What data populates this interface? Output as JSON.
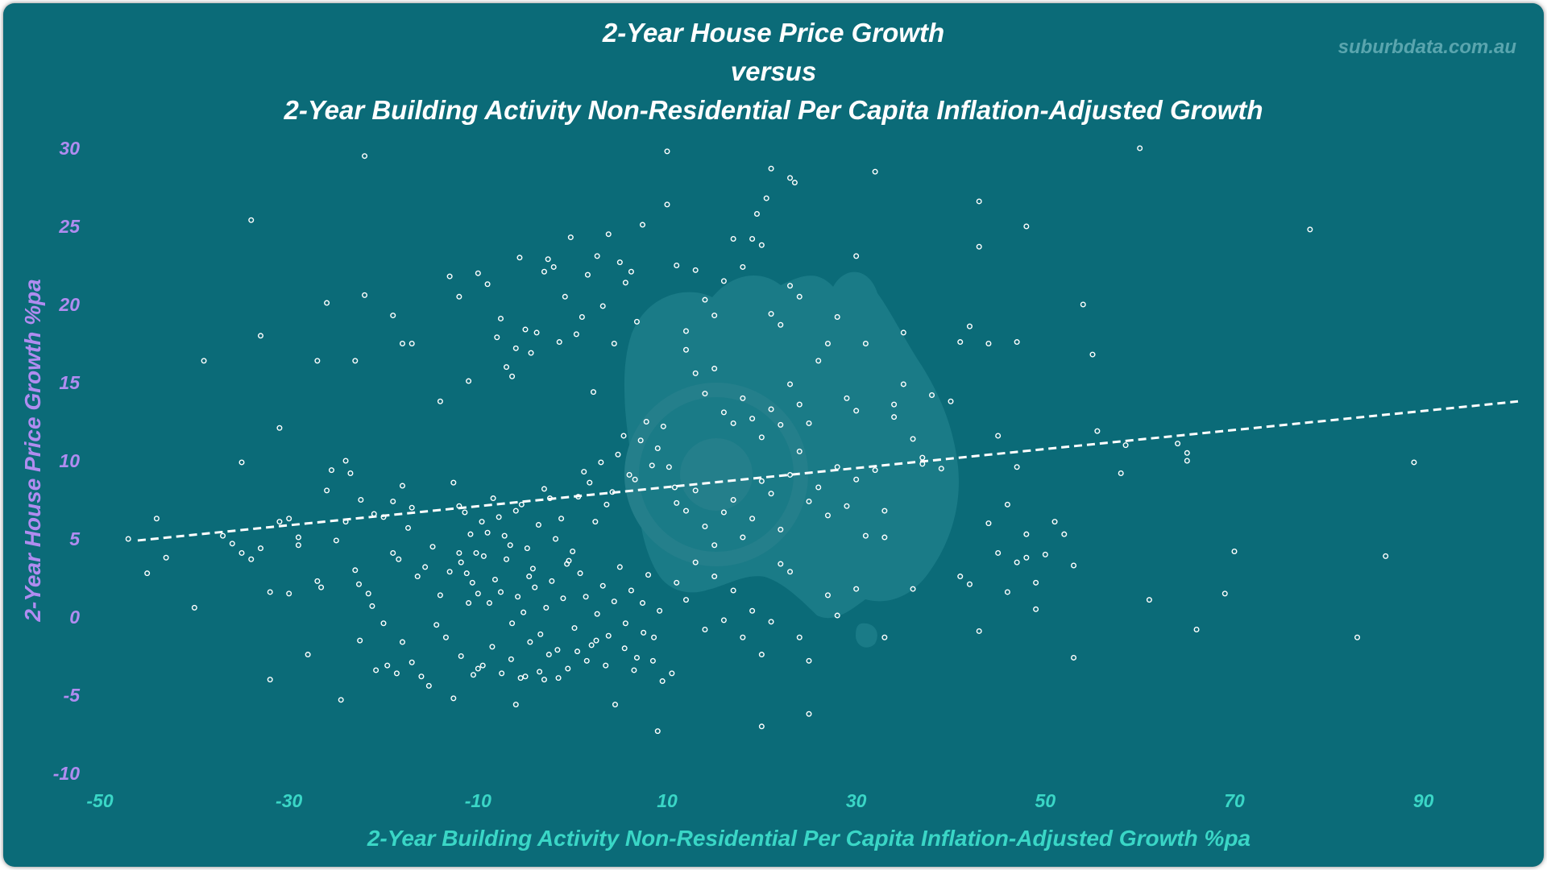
{
  "chart_data": {
    "type": "scatter",
    "title": [
      "2-Year House Price Growth",
      "versus",
      "2-Year Building Activity Non-Residential Per Capita Inflation-Adjusted Growth"
    ],
    "xlabel": "2-Year Building Activity Non-Residential Per Capita Inflation-Adjusted Growth %pa",
    "ylabel": "2-Year House Price Growth %pa",
    "watermark": "suburbdata.com.au",
    "xlim": [
      -50,
      100
    ],
    "ylim": [
      -10,
      30
    ],
    "x_ticks": [
      "-50",
      "-30",
      "-10",
      "10",
      "30",
      "50",
      "70",
      "90"
    ],
    "y_ticks": [
      "-10",
      "-5",
      "0",
      "5",
      "10",
      "15",
      "20",
      "25",
      "30"
    ],
    "grid": false,
    "trendline": {
      "x": [
        -46,
        100
      ],
      "y": [
        4.9,
        13.8
      ],
      "style": "dashed"
    },
    "colors": {
      "background": "#0b6b78",
      "title": "#ffffff",
      "x_axis_text": "#3ad6c6",
      "y_axis_text": "#b08cf0",
      "points": "#ffffff",
      "map_silhouette": "#1a7b87"
    },
    "points": [
      [
        -47,
        5
      ],
      [
        -45,
        2.8
      ],
      [
        -44,
        6.3
      ],
      [
        -43,
        3.8
      ],
      [
        -40,
        0.6
      ],
      [
        -39,
        16.4
      ],
      [
        -35,
        9.9
      ],
      [
        -34,
        25.4
      ],
      [
        -33,
        18
      ],
      [
        -32,
        1.6
      ],
      [
        -32,
        -4
      ],
      [
        -31,
        12.1
      ],
      [
        -30,
        1.5
      ],
      [
        -29,
        5.1
      ],
      [
        -28,
        -2.4
      ],
      [
        -27,
        16.4
      ],
      [
        -26,
        20.1
      ],
      [
        -25,
        4.9
      ],
      [
        -37,
        5.2
      ],
      [
        -36,
        4.7
      ],
      [
        -35,
        4.1
      ],
      [
        -34,
        3.7
      ],
      [
        -33,
        4.4
      ],
      [
        -31,
        6.1
      ],
      [
        -30,
        6.3
      ],
      [
        -29,
        4.6
      ],
      [
        -27,
        2.3
      ],
      [
        -26.6,
        1.9
      ],
      [
        -26,
        8.1
      ],
      [
        -25.5,
        9.4
      ],
      [
        -24,
        6.1
      ],
      [
        -22,
        29.5
      ],
      [
        -22,
        20.6
      ],
      [
        -19,
        19.3
      ],
      [
        -18,
        17.5
      ],
      [
        -17,
        17.5
      ],
      [
        -23,
        16.4
      ],
      [
        -24,
        10
      ],
      [
        -23.5,
        9.2
      ],
      [
        -22.4,
        7.5
      ],
      [
        -21,
        6.6
      ],
      [
        -20,
        6.4
      ],
      [
        -19,
        7.4
      ],
      [
        -18,
        8.4
      ],
      [
        -17,
        7
      ],
      [
        -23,
        3
      ],
      [
        -22.6,
        2.1
      ],
      [
        -21.6,
        1.5
      ],
      [
        -21.2,
        0.7
      ],
      [
        -20,
        -0.4
      ],
      [
        -19.6,
        -3.1
      ],
      [
        -18.6,
        -3.6
      ],
      [
        -18,
        -1.6
      ],
      [
        -17,
        -2.9
      ],
      [
        -16,
        -3.8
      ],
      [
        -15.2,
        -4.4
      ],
      [
        -14.4,
        -0.5
      ],
      [
        -13.4,
        -1.3
      ],
      [
        -12.6,
        -5.2
      ],
      [
        -11.8,
        -2.5
      ],
      [
        -24.5,
        -5.3
      ],
      [
        -22.5,
        -1.5
      ],
      [
        -20.8,
        -3.4
      ],
      [
        -19,
        4.1
      ],
      [
        -18.4,
        3.7
      ],
      [
        -17.4,
        5.7
      ],
      [
        -16.4,
        2.6
      ],
      [
        -15.6,
        3.2
      ],
      [
        -14.8,
        4.5
      ],
      [
        -14,
        1.4
      ],
      [
        -13,
        2.9
      ],
      [
        -12,
        4.1
      ],
      [
        -11,
        0.9
      ],
      [
        -10,
        -3.3
      ],
      [
        -14,
        13.8
      ],
      [
        -13,
        21.8
      ],
      [
        -12,
        20.5
      ],
      [
        -11,
        15.1
      ],
      [
        -10,
        22
      ],
      [
        -9,
        21.3
      ],
      [
        -8,
        17.9
      ],
      [
        -7.6,
        19.1
      ],
      [
        -7,
        16
      ],
      [
        -6.4,
        15.4
      ],
      [
        -6,
        17.2
      ],
      [
        -5.6,
        23
      ],
      [
        -5,
        18.4
      ],
      [
        -4.4,
        16.9
      ],
      [
        -3.8,
        18.2
      ],
      [
        -3,
        22.1
      ],
      [
        -2.6,
        22.9
      ],
      [
        -2,
        22.4
      ],
      [
        -1.4,
        17.6
      ],
      [
        -0.8,
        20.5
      ],
      [
        -0.2,
        24.3
      ],
      [
        0.4,
        18.1
      ],
      [
        1,
        19.2
      ],
      [
        1.6,
        21.9
      ],
      [
        2.2,
        14.4
      ],
      [
        2.6,
        23.1
      ],
      [
        3.2,
        19.9
      ],
      [
        3.8,
        24.5
      ],
      [
        4.4,
        17.5
      ],
      [
        5,
        22.7
      ],
      [
        5.6,
        21.4
      ],
      [
        6.2,
        22.1
      ],
      [
        6.8,
        18.9
      ],
      [
        7.4,
        25.1
      ],
      [
        -12.6,
        8.6
      ],
      [
        -12,
        7.1
      ],
      [
        -11.4,
        6.7
      ],
      [
        -10.8,
        5.3
      ],
      [
        -10.2,
        4.1
      ],
      [
        -9.6,
        6.1
      ],
      [
        -9,
        5.4
      ],
      [
        -8.4,
        7.6
      ],
      [
        -7.8,
        6.4
      ],
      [
        -7.2,
        5.2
      ],
      [
        -6.6,
        4.6
      ],
      [
        -6,
        6.8
      ],
      [
        -5.4,
        7.2
      ],
      [
        -4.8,
        4.4
      ],
      [
        -4.2,
        3.1
      ],
      [
        -3.6,
        5.9
      ],
      [
        -3,
        8.2
      ],
      [
        -2.4,
        7.6
      ],
      [
        -1.8,
        5
      ],
      [
        -1.2,
        6.3
      ],
      [
        -0.6,
        3.4
      ],
      [
        0,
        4.2
      ],
      [
        0.6,
        7.7
      ],
      [
        1.2,
        9.3
      ],
      [
        1.8,
        8.6
      ],
      [
        2.4,
        6.1
      ],
      [
        3,
        9.9
      ],
      [
        3.6,
        7.2
      ],
      [
        4.2,
        8
      ],
      [
        4.8,
        10.4
      ],
      [
        5.4,
        11.6
      ],
      [
        6,
        9.1
      ],
      [
        6.6,
        8.8
      ],
      [
        7.2,
        11.3
      ],
      [
        7.8,
        12.5
      ],
      [
        8.4,
        9.7
      ],
      [
        9,
        10.8
      ],
      [
        9.6,
        12.2
      ],
      [
        10.2,
        9.6
      ],
      [
        10.8,
        8.3
      ],
      [
        -11.8,
        3.5
      ],
      [
        -11.2,
        2.8
      ],
      [
        -10.6,
        2.2
      ],
      [
        -10,
        1.5
      ],
      [
        -9.4,
        3.9
      ],
      [
        -8.8,
        0.9
      ],
      [
        -8.2,
        2.4
      ],
      [
        -7.6,
        1.6
      ],
      [
        -7,
        3.7
      ],
      [
        -6.4,
        -0.4
      ],
      [
        -5.8,
        1.3
      ],
      [
        -5.2,
        0.3
      ],
      [
        -4.6,
        2.6
      ],
      [
        -4,
        1.9
      ],
      [
        -3.4,
        -1.1
      ],
      [
        -2.8,
        0.6
      ],
      [
        -2.2,
        2.3
      ],
      [
        -1.6,
        -2.1
      ],
      [
        -1,
        1.2
      ],
      [
        -0.4,
        3.6
      ],
      [
        0.2,
        -0.7
      ],
      [
        0.8,
        2.8
      ],
      [
        1.4,
        1.3
      ],
      [
        2,
        -1.8
      ],
      [
        2.6,
        0.2
      ],
      [
        3.2,
        2
      ],
      [
        3.8,
        -1.2
      ],
      [
        4.4,
        1
      ],
      [
        5,
        3.2
      ],
      [
        5.6,
        -0.4
      ],
      [
        6.2,
        1.7
      ],
      [
        6.8,
        -2.6
      ],
      [
        7.4,
        0.9
      ],
      [
        8,
        2.7
      ],
      [
        8.6,
        -1.3
      ],
      [
        9.2,
        0.4
      ],
      [
        -10.5,
        -3.7
      ],
      [
        -9.5,
        -3.1
      ],
      [
        -8.5,
        -1.9
      ],
      [
        -7.5,
        -3.6
      ],
      [
        -6.5,
        -2.7
      ],
      [
        -5.5,
        -3.9
      ],
      [
        -4.5,
        -1.6
      ],
      [
        -3.5,
        -3.5
      ],
      [
        -2.5,
        -2.4
      ],
      [
        -1.5,
        -3.9
      ],
      [
        -0.5,
        -3.3
      ],
      [
        0.5,
        -2.2
      ],
      [
        1.5,
        -2.8
      ],
      [
        2.5,
        -1.5
      ],
      [
        3.5,
        -3.1
      ],
      [
        4.5,
        -5.6
      ],
      [
        5.5,
        -2
      ],
      [
        6.5,
        -3.4
      ],
      [
        7.5,
        -1
      ],
      [
        8.5,
        -2.8
      ],
      [
        9.5,
        -4.1
      ],
      [
        10.5,
        -3.6
      ],
      [
        -6,
        -5.6
      ],
      [
        -5,
        -3.8
      ],
      [
        -3,
        -4
      ],
      [
        9,
        -7.3
      ],
      [
        20,
        -7
      ],
      [
        25,
        -6.2
      ],
      [
        10,
        29.8
      ],
      [
        10,
        26.4
      ],
      [
        11,
        22.5
      ],
      [
        12,
        18.3
      ],
      [
        13,
        22.2
      ],
      [
        14,
        20.3
      ],
      [
        15,
        19.3
      ],
      [
        16,
        21.5
      ],
      [
        17,
        24.2
      ],
      [
        18,
        22.4
      ],
      [
        19,
        24.2
      ],
      [
        20,
        23.8
      ],
      [
        21,
        19.4
      ],
      [
        22,
        18.7
      ],
      [
        23,
        21.2
      ],
      [
        24,
        20.5
      ],
      [
        19.5,
        25.8
      ],
      [
        20.5,
        26.8
      ],
      [
        21,
        28.7
      ],
      [
        23,
        28.1
      ],
      [
        23.5,
        27.8
      ],
      [
        12,
        17.1
      ],
      [
        13,
        15.6
      ],
      [
        14,
        14.3
      ],
      [
        15,
        15.9
      ],
      [
        16,
        13.1
      ],
      [
        17,
        12.4
      ],
      [
        18,
        14
      ],
      [
        19,
        12.7
      ],
      [
        20,
        11.5
      ],
      [
        21,
        13.3
      ],
      [
        22,
        12.3
      ],
      [
        23,
        14.9
      ],
      [
        24,
        13.6
      ],
      [
        25,
        12.4
      ],
      [
        26,
        16.4
      ],
      [
        27,
        17.5
      ],
      [
        28,
        19.2
      ],
      [
        29,
        14
      ],
      [
        30,
        13.2
      ],
      [
        31,
        17.5
      ],
      [
        32,
        28.5
      ],
      [
        30,
        23.1
      ],
      [
        11,
        7.3
      ],
      [
        12,
        6.8
      ],
      [
        13,
        8.1
      ],
      [
        14,
        5.8
      ],
      [
        15,
        4.6
      ],
      [
        16,
        6.7
      ],
      [
        17,
        7.5
      ],
      [
        18,
        5.1
      ],
      [
        19,
        6.3
      ],
      [
        20,
        8.7
      ],
      [
        21,
        7.9
      ],
      [
        22,
        5.6
      ],
      [
        23,
        9.1
      ],
      [
        24,
        10.6
      ],
      [
        25,
        7.4
      ],
      [
        26,
        8.3
      ],
      [
        27,
        6.5
      ],
      [
        28,
        9.6
      ],
      [
        29,
        7.1
      ],
      [
        30,
        8.8
      ],
      [
        31,
        5.2
      ],
      [
        11,
        2.2
      ],
      [
        12,
        1.1
      ],
      [
        13,
        3.5
      ],
      [
        14,
        -0.8
      ],
      [
        15,
        2.6
      ],
      [
        16,
        -0.2
      ],
      [
        17,
        1.7
      ],
      [
        18,
        -1.3
      ],
      [
        19,
        0.4
      ],
      [
        20,
        -2.4
      ],
      [
        21,
        -0.3
      ],
      [
        22,
        3.4
      ],
      [
        23,
        2.9
      ],
      [
        24,
        -1.3
      ],
      [
        25,
        -2.8
      ],
      [
        27,
        1.4
      ],
      [
        28,
        0.1
      ],
      [
        30,
        1.8
      ],
      [
        33,
        -1.3
      ],
      [
        32,
        9.4
      ],
      [
        33,
        6.8
      ],
      [
        34,
        13.6
      ],
      [
        35,
        14.9
      ],
      [
        36,
        11.4
      ],
      [
        37,
        10.2
      ],
      [
        38,
        14.2
      ],
      [
        39,
        9.5
      ],
      [
        40,
        13.8
      ],
      [
        41,
        17.6
      ],
      [
        42,
        18.6
      ],
      [
        43,
        23.7
      ],
      [
        44,
        17.5
      ],
      [
        45,
        11.6
      ],
      [
        46,
        7.2
      ],
      [
        47,
        9.6
      ],
      [
        48,
        5.3
      ],
      [
        49,
        2.2
      ],
      [
        43,
        26.6
      ],
      [
        48,
        25
      ],
      [
        47,
        17.6
      ],
      [
        35,
        18.2
      ],
      [
        34,
        12.8
      ],
      [
        37,
        9.8
      ],
      [
        36,
        1.8
      ],
      [
        33,
        5.1
      ],
      [
        41,
        2.6
      ],
      [
        42,
        2.1
      ],
      [
        43,
        -0.9
      ],
      [
        44,
        6
      ],
      [
        45,
        4.1
      ],
      [
        46,
        1.6
      ],
      [
        47,
        3.5
      ],
      [
        48,
        3.8
      ],
      [
        49,
        0.5
      ],
      [
        50,
        4
      ],
      [
        51,
        6.1
      ],
      [
        52,
        5.3
      ],
      [
        53,
        3.3
      ],
      [
        53,
        -2.6
      ],
      [
        54,
        20
      ],
      [
        55,
        16.8
      ],
      [
        55.5,
        11.9
      ],
      [
        58,
        9.2
      ],
      [
        58.5,
        11
      ],
      [
        60,
        30
      ],
      [
        61,
        1.1
      ],
      [
        64,
        11.1
      ],
      [
        65,
        10.5
      ],
      [
        65,
        10
      ],
      [
        66,
        -0.8
      ],
      [
        69,
        1.5
      ],
      [
        70,
        4.2
      ],
      [
        78,
        24.8
      ],
      [
        83,
        -1.3
      ],
      [
        86,
        3.9
      ],
      [
        89,
        9.9
      ]
    ]
  }
}
